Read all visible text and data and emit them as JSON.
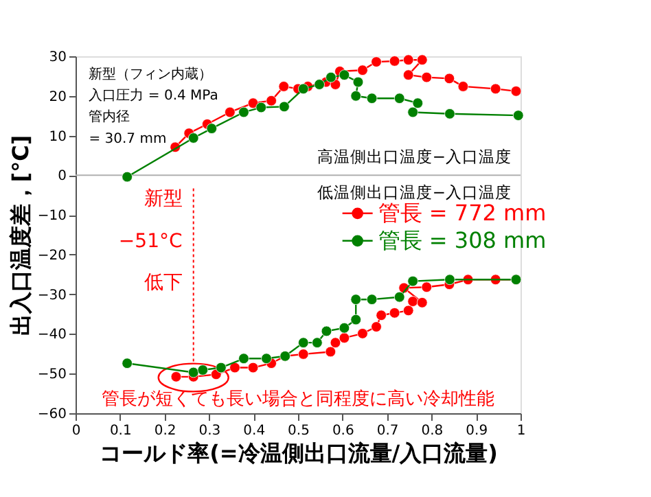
{
  "chart_data": {
    "type": "line",
    "xlabel": "コールド率(=冷温側出口流量/入口流量)",
    "ylabel": "出入口温度差，[°C]",
    "xlim": [
      0,
      1
    ],
    "xticks": [
      0,
      0.1,
      0.2,
      0.3,
      0.4,
      0.5,
      0.6,
      0.7,
      0.8,
      0.9,
      1
    ],
    "ylim": [
      -60,
      30
    ],
    "yticks": [
      -60,
      -50,
      -40,
      -30,
      -20,
      -10,
      0,
      10,
      20,
      30
    ],
    "marker": "circle",
    "line_style": "solid",
    "grid": false,
    "legend": "right",
    "series": [
      {
        "color": "#ff0000",
        "x": [
          0.224,
          0.255,
          0.296,
          0.347,
          0.399,
          0.44,
          0.468,
          0.5,
          0.522,
          0.563,
          0.584,
          0.594,
          0.645,
          0.676,
          0.717,
          0.748,
          0.779,
          0.748,
          0.789,
          0.84,
          0.871,
          0.944,
          0.99
        ],
        "values": [
          7.1,
          10.6,
          12.9,
          15.9,
          18.2,
          18.8,
          22.4,
          21.8,
          22.4,
          23.5,
          22.9,
          26.2,
          26.5,
          28.6,
          28.8,
          29.1,
          29.1,
          25.3,
          24.7,
          24.4,
          22.4,
          21.8,
          21.2
        ]
      },
      {
        "name": "管長 = 772 mm",
        "color": "#ff0000",
        "x": [
          0.226,
          0.265,
          0.316,
          0.358,
          0.399,
          0.44,
          0.471,
          0.512,
          0.573,
          0.584,
          0.604,
          0.645,
          0.676,
          0.687,
          0.717,
          0.748,
          0.758,
          0.779,
          0.738,
          0.789,
          0.84,
          0.882,
          0.944,
          0.99
        ],
        "values": [
          -50.8,
          -50.8,
          -50.2,
          -48.5,
          -48.5,
          -47.4,
          -45.6,
          -45.1,
          -44.5,
          -42.2,
          -41,
          -39.9,
          -38.2,
          -35.3,
          -34.7,
          -34.1,
          -31.8,
          -32.1,
          -28.4,
          -28.2,
          -27.5,
          -26.3,
          -26.3,
          -26.3
        ]
      },
      {
        "color": "#008000",
        "x": [
          0.116,
          0.265,
          0.306,
          0.378,
          0.417,
          0.469,
          0.512,
          0.548,
          0.574,
          0.604,
          0.635,
          0.63,
          0.666,
          0.728,
          0.769,
          0.758,
          0.841,
          0.995
        ],
        "values": [
          -0.4,
          9.4,
          11.8,
          15.9,
          17.1,
          17.3,
          21.8,
          22.9,
          24.7,
          25.3,
          23.5,
          20,
          19.4,
          19.4,
          18.2,
          15.9,
          15.5,
          15.1
        ]
      },
      {
        "name": "管長 = 308 mm",
        "color": "#008000",
        "x": [
          0.116,
          0.265,
          0.286,
          0.327,
          0.378,
          0.429,
          0.471,
          0.512,
          0.543,
          0.564,
          0.604,
          0.63,
          0.63,
          0.666,
          0.728,
          0.758,
          0.841,
          0.99
        ],
        "values": [
          -47.4,
          -49.7,
          -49.1,
          -48.5,
          -46.2,
          -46.2,
          -45.6,
          -42.2,
          -42.2,
          -39.3,
          -38.5,
          -36.4,
          -31.3,
          -31.3,
          -30.7,
          -26.7,
          -26.3,
          -26.3
        ]
      }
    ],
    "ref_lines": [
      {
        "axis": "y",
        "value": 0,
        "color": "#b0b0b0",
        "line_style": "solid"
      },
      {
        "axis": "x",
        "value": 0.265,
        "color": "#ff0000",
        "line_style": "dotted"
      }
    ],
    "annotations": [
      "新型（フィン内蔵）",
      "入口圧力 = 0.4 MPa",
      "管内径",
      "= 30.7 mm",
      "高温側出口温度−入口温度",
      "低温側出口温度−入口温度",
      "新型",
      "−51°C",
      "低下",
      "管長が短くても長い場合と同程度に高い冷却性能"
    ]
  }
}
